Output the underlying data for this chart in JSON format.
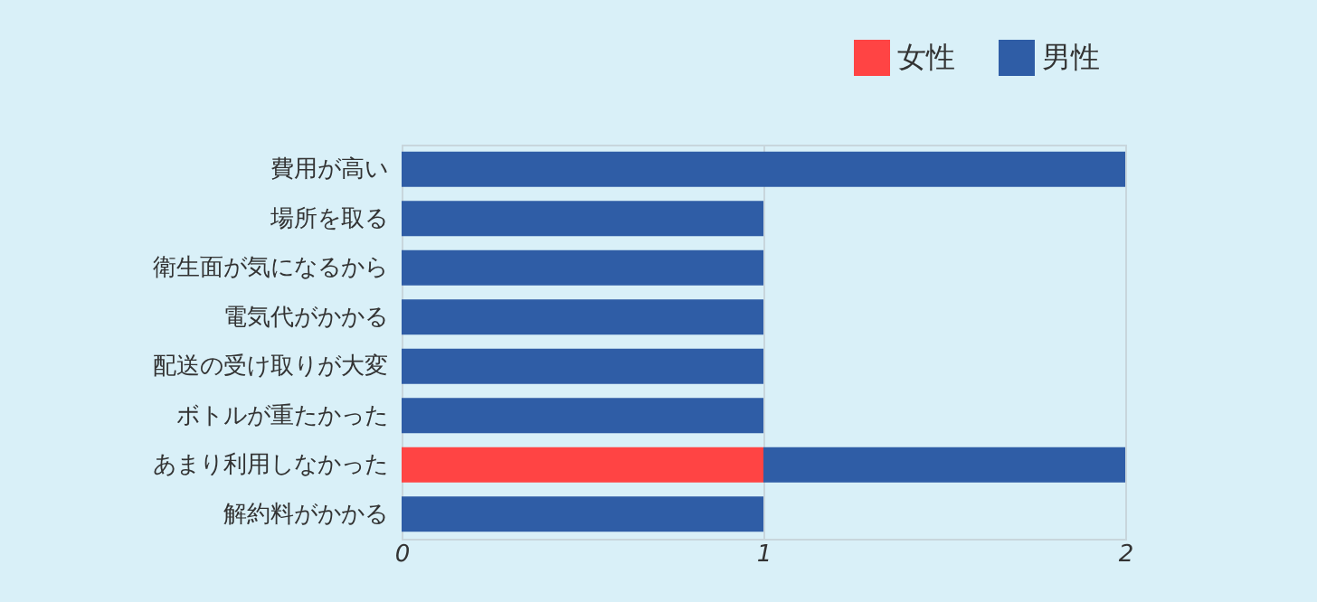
{
  "chart_data": {
    "type": "bar",
    "orientation": "horizontal",
    "stacked": true,
    "categories": [
      "費用が高い",
      "場所を取る",
      "衛生面が気になるから",
      "電気代がかかる",
      "配送の受け取りが大変",
      "ボトルが重たかった",
      "あまり利用しなかった",
      "解約料がかかる"
    ],
    "series": [
      {
        "name": "女性",
        "color": "#ff4444",
        "values": [
          null,
          null,
          null,
          null,
          null,
          null,
          1,
          null
        ]
      },
      {
        "name": "男性",
        "color": "#2f5da6",
        "values": [
          2,
          1,
          1,
          1,
          1,
          1,
          1,
          1
        ]
      }
    ],
    "xlim": [
      0,
      2
    ],
    "xticks": [
      0,
      1,
      2
    ],
    "grid": "x",
    "legend": "top right"
  }
}
